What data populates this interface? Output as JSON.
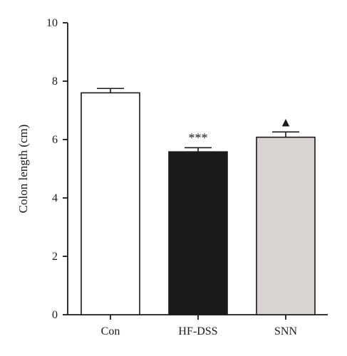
{
  "chart_data": {
    "type": "bar",
    "categories": [
      "Con",
      "HF-DSS",
      "SNN"
    ],
    "values": [
      7.6,
      5.58,
      6.08
    ],
    "errors": [
      0.15,
      0.14,
      0.18
    ],
    "bar_fills": [
      "#ffffff",
      "#1a1a1a",
      "#d9d4d2"
    ],
    "annotations": [
      "",
      "***",
      "▲"
    ],
    "xlabel": "",
    "ylabel": "Colon length (cm)",
    "ylim": [
      0,
      10
    ],
    "yticks": [
      0,
      2,
      4,
      6,
      8,
      10
    ],
    "grid": false,
    "legend": "none"
  }
}
